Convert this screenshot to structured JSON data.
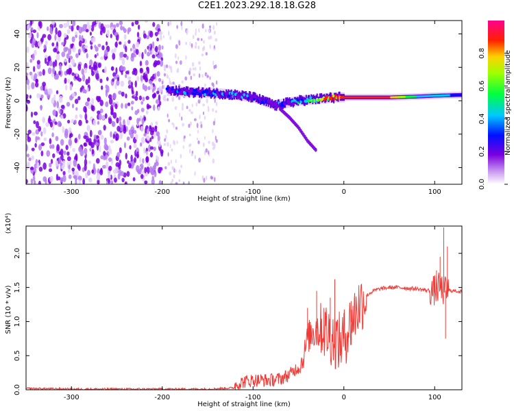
{
  "title": "C2E1.2023.292.18.18.G28",
  "chart_data": [
    {
      "type": "heatmap",
      "xlabel": "Height of straight line (km)",
      "ylabel": "Frequency (Hz)",
      "xlim": [
        -350,
        130
      ],
      "ylim": [
        -50,
        48
      ],
      "xticks": [
        -300,
        -200,
        -100,
        0,
        100
      ],
      "yticks": [
        -40,
        -20,
        0,
        20,
        40
      ],
      "colorbar": {
        "label": "Normalized spectral amplitude",
        "range": [
          0,
          1
        ],
        "ticks": [
          0.0,
          0.2,
          0.4,
          0.6,
          0.8
        ]
      },
      "ridge": {
        "x": [
          -195,
          -180,
          -160,
          -140,
          -120,
          -100,
          -90,
          -80,
          -75,
          -70,
          -60,
          -50,
          -40,
          -30,
          -20,
          -10,
          0,
          20,
          50,
          80,
          100,
          130
        ],
        "y": [
          6,
          5.5,
          5,
          4.5,
          3.5,
          2,
          0,
          -2,
          -3,
          -2,
          -1,
          0,
          0.5,
          1,
          1.5,
          2,
          2,
          2,
          2,
          2.5,
          3,
          3.5
        ],
        "amplitude": [
          0.25,
          0.35,
          0.3,
          0.35,
          0.3,
          0.3,
          0.25,
          0.2,
          0.2,
          0.3,
          0.3,
          0.4,
          0.5,
          0.6,
          0.75,
          0.85,
          0.9,
          0.9,
          0.9,
          0.55,
          0.45,
          0.4
        ]
      },
      "branch": {
        "x": [
          -70,
          -60,
          -50,
          -40,
          -30
        ],
        "y": [
          -5,
          -10,
          -16,
          -24,
          -30
        ]
      },
      "noise_region_x": [
        -350,
        -200
      ],
      "sparse_noise_region_x": [
        -200,
        -140
      ]
    },
    {
      "type": "line",
      "xlabel": "Height of straight line (km)",
      "ylabel": "SNR (10 * v/v)",
      "yscale_label": "(x10⁴)",
      "xlim": [
        -350,
        130
      ],
      "ylim": [
        0,
        2.4
      ],
      "xticks": [
        -300,
        -200,
        -100,
        0,
        100
      ],
      "yticks": [
        0.0,
        0.5,
        1.0,
        1.5,
        2.0
      ],
      "color": "#ef3b36",
      "series": [
        {
          "x": [
            -350,
            -300,
            -250,
            -200,
            -150,
            -120,
            -110,
            -100,
            -90,
            -80,
            -70,
            -60,
            -50,
            -45,
            -40,
            -35,
            -30,
            -25,
            -20,
            -15,
            -10,
            -5,
            0,
            5,
            10,
            15,
            20,
            25,
            30,
            35,
            40,
            50,
            60,
            70,
            80,
            90,
            100,
            105,
            110,
            115,
            120,
            130
          ],
          "values": [
            0.02,
            0.01,
            0.01,
            0.01,
            0.01,
            0.03,
            0.08,
            0.1,
            0.1,
            0.1,
            0.12,
            0.18,
            0.3,
            0.45,
            0.75,
            0.85,
            0.9,
            0.9,
            0.85,
            0.8,
            0.75,
            0.7,
            0.75,
            0.9,
            1.05,
            1.2,
            1.3,
            1.38,
            1.43,
            1.46,
            1.48,
            1.5,
            1.5,
            1.49,
            1.48,
            1.46,
            1.45,
            1.5,
            1.45,
            1.46,
            1.45,
            1.44
          ]
        }
      ],
      "spikes": [
        {
          "x": -40,
          "y": 1.2
        },
        {
          "x": -30,
          "y": 1.45
        },
        {
          "x": -22,
          "y": 1.2
        },
        {
          "x": -15,
          "y": 1.35
        },
        {
          "x": -10,
          "y": 1.62
        },
        {
          "x": 0,
          "y": 1.12
        },
        {
          "x": 8,
          "y": 1.3
        },
        {
          "x": 100,
          "y": 1.68
        },
        {
          "x": 102,
          "y": 1.75
        },
        {
          "x": 106,
          "y": 1.95
        },
        {
          "x": 110,
          "y": 2.38
        },
        {
          "x": 112,
          "y": 0.75
        },
        {
          "x": 114,
          "y": 2.1
        }
      ]
    }
  ]
}
